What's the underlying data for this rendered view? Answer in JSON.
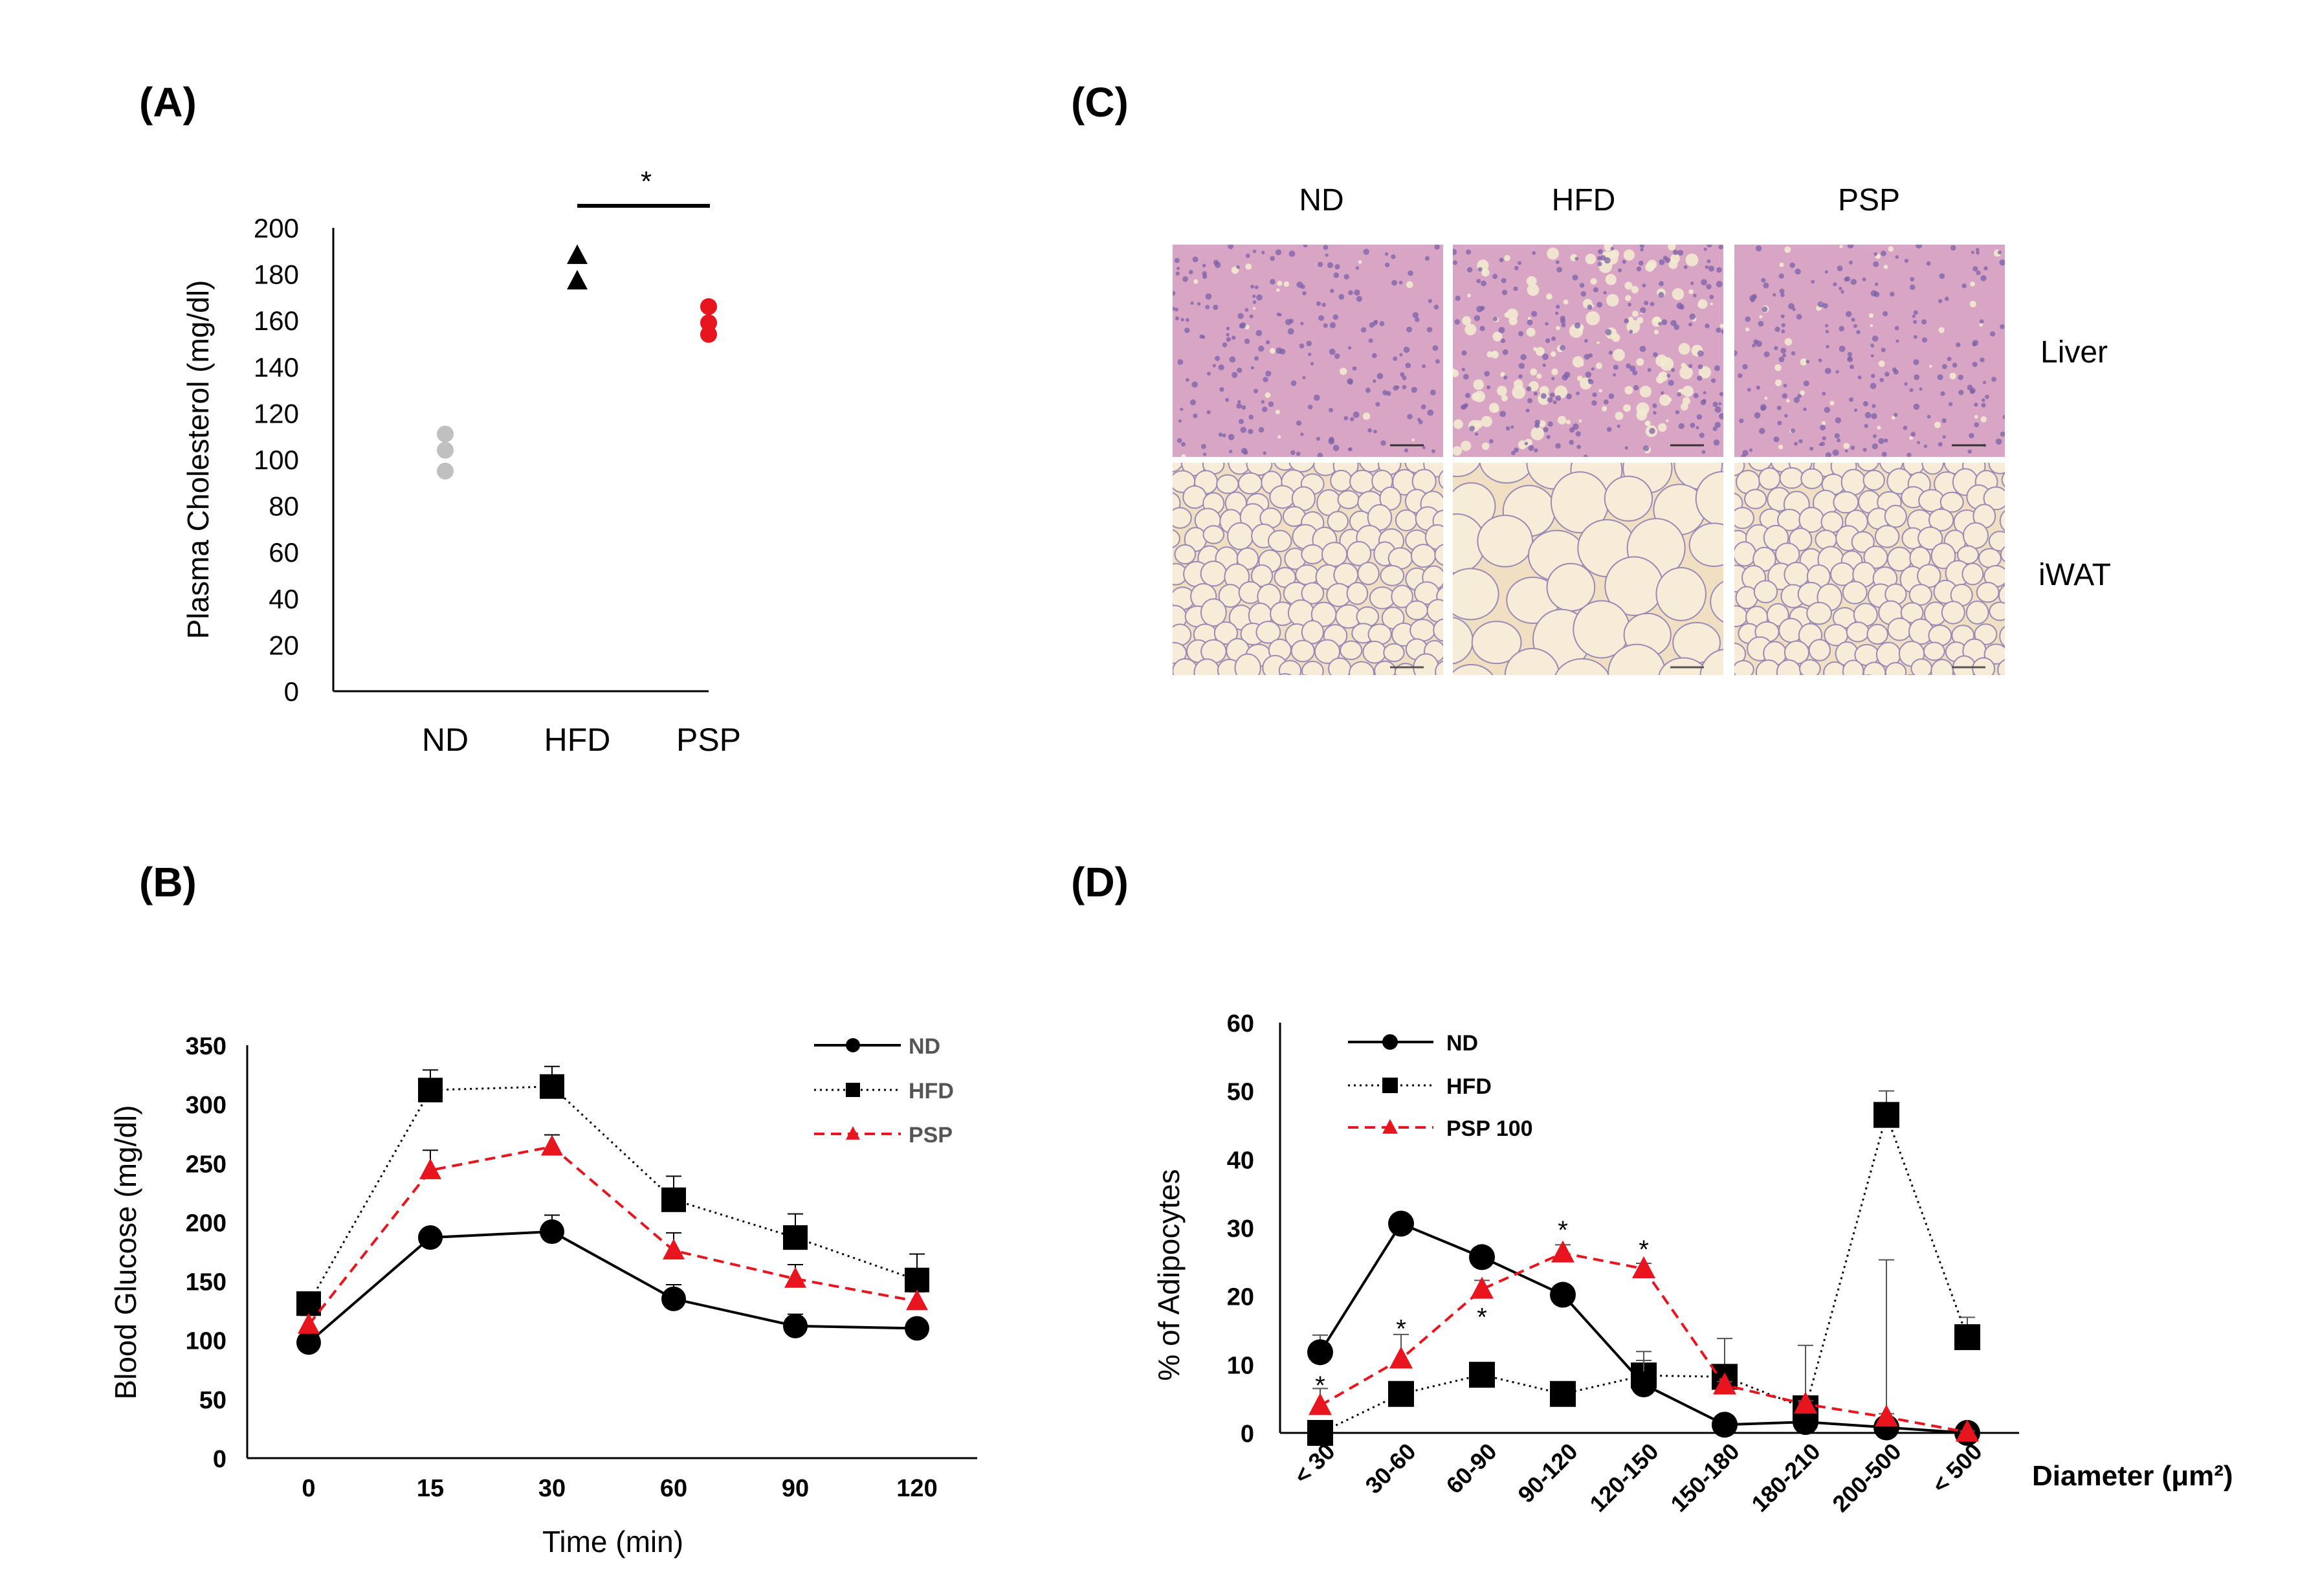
{
  "panels": {
    "A": {
      "letter": "(A)"
    },
    "B": {
      "letter": "(B)"
    },
    "C": {
      "letter": "(C)",
      "columns": [
        "ND",
        "HFD",
        "PSP"
      ],
      "rows": [
        "Liver",
        "iWAT"
      ]
    },
    "D": {
      "letter": "(D)"
    }
  },
  "colors": {
    "nd_points": "#c0c0c0",
    "hfd_points": "#000000",
    "psp_points": "#e8141e",
    "psp_line": "#e8141e",
    "liver_bg": "#d9a5c5",
    "liver_nuclei": "#7a62a8",
    "liver_lipid": "#f2ebd0",
    "iwat_bg": "#f0dfc3",
    "iwat_membrane": "#9a8ab4"
  },
  "chart_data": [
    {
      "id": "A",
      "type": "scatter",
      "title": "",
      "xlabel": "",
      "ylabel": "Plasma Cholesterol (mg/dl)",
      "ylim": [
        0,
        200
      ],
      "yticks": [
        0,
        20,
        40,
        60,
        80,
        100,
        120,
        140,
        160,
        180,
        200
      ],
      "ytick_labels": [
        "0",
        "20",
        "40",
        "60",
        "80",
        "100",
        "120",
        "140",
        "160",
        "180",
        "200"
      ],
      "categories": [
        "ND",
        "HFD",
        "PSP"
      ],
      "series": [
        {
          "name": "ND",
          "marker": "circle",
          "values": [
            95,
            104,
            111
          ]
        },
        {
          "name": "HFD",
          "marker": "triangle",
          "values": [
            177,
            188
          ]
        },
        {
          "name": "PSP",
          "marker": "circle",
          "values": [
            154,
            159,
            166
          ]
        }
      ],
      "significance": {
        "from": "HFD",
        "to": "PSP",
        "label": "*"
      }
    },
    {
      "id": "B",
      "type": "line",
      "title": "",
      "xlabel": "Time (min)",
      "ylabel": "Blood Glucose (mg/dl)",
      "categories": [
        "0",
        "15",
        "30",
        "60",
        "90",
        "120"
      ],
      "ylim": [
        0,
        350
      ],
      "yticks": [
        0,
        50,
        100,
        150,
        200,
        250,
        300,
        350
      ],
      "ytick_labels": [
        "0",
        "50",
        "100",
        "150",
        "200",
        "250",
        "300",
        "350"
      ],
      "legend": "top-right",
      "series": [
        {
          "name": "ND",
          "marker": "circle",
          "style": "solid",
          "values": [
            98,
            187,
            192,
            135,
            112,
            110
          ],
          "errors": [
            8,
            5,
            14,
            12,
            10,
            5
          ]
        },
        {
          "name": "HFD",
          "marker": "square",
          "style": "dotted",
          "values": [
            131,
            312,
            315,
            219,
            187,
            151
          ],
          "errors": [
            6,
            17,
            17,
            20,
            20,
            22
          ]
        },
        {
          "name": "PSP",
          "marker": "triangle",
          "style": "dashed",
          "values": [
            113,
            244,
            264,
            176,
            152,
            133
          ],
          "errors": [
            8,
            17,
            10,
            15,
            12,
            8
          ]
        }
      ]
    },
    {
      "id": "D",
      "type": "line",
      "title": "",
      "xlabel": "Diameter (μm²)",
      "ylabel": "% of Adipocytes",
      "categories": [
        "< 30",
        "30-60",
        "60-90",
        "90-120",
        "120-150",
        "150-180",
        "180-210",
        "200-500",
        "< 500"
      ],
      "ylim": [
        0,
        60
      ],
      "yticks": [
        0,
        10,
        20,
        30,
        40,
        50,
        60
      ],
      "ytick_labels": [
        "0",
        "10",
        "20",
        "30",
        "40",
        "50",
        "60"
      ],
      "legend": "top-left",
      "series": [
        {
          "name": "ND",
          "marker": "circle",
          "style": "solid",
          "values": [
            11.8,
            30.6,
            25.7,
            20.2,
            7.1,
            1.2,
            1.6,
            0.8,
            0.0
          ],
          "errors": [
            2.5,
            0.5,
            0.7,
            0.6,
            3.5,
            0.4,
            0.6,
            24.5,
            0.2
          ]
        },
        {
          "name": "HFD",
          "marker": "square",
          "style": "dotted",
          "values": [
            0.0,
            5.7,
            8.5,
            5.7,
            8.4,
            8.2,
            3.6,
            46.5,
            14.0
          ],
          "errors": [
            0.3,
            1.0,
            0.6,
            0.5,
            3.5,
            5.6,
            9.2,
            3.5,
            2.9
          ]
        },
        {
          "name": "PSP 100",
          "marker": "triangle",
          "style": "dashed",
          "values": [
            4.0,
            10.8,
            21.0,
            26.3,
            24.0,
            7.0,
            4.2,
            2.3,
            0.1
          ],
          "errors": [
            2.5,
            3.6,
            1.3,
            1.2,
            0.8,
            0.5,
            0.5,
            0.5,
            0.2
          ]
        }
      ],
      "annotations": [
        {
          "category": "< 30",
          "value": 7.0,
          "text": "*"
        },
        {
          "category": "30-60",
          "value": 15.3,
          "text": "*"
        },
        {
          "category": "60-90",
          "value": 17.0,
          "text": "*"
        },
        {
          "category": "90-120",
          "value": 29.7,
          "text": "*"
        },
        {
          "category": "120-150",
          "value": 26.9,
          "text": "*"
        }
      ]
    }
  ]
}
